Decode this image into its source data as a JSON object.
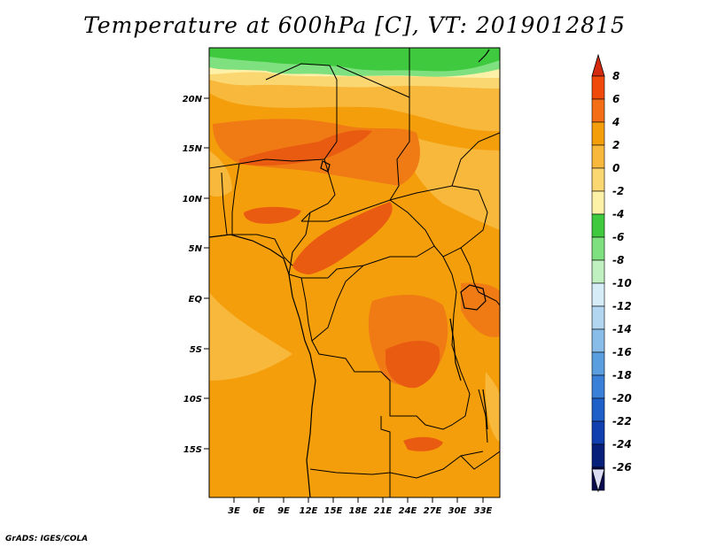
{
  "title": "Temperature at 600hPa [C], VT: 2019012815",
  "credit": "GrADS: IGES/COLA",
  "map": {
    "lat_labels": [
      "20N",
      "15N",
      "10N",
      "5N",
      "EQ",
      "5S",
      "10S",
      "15S"
    ],
    "lon_labels": [
      "3E",
      "6E",
      "9E",
      "12E",
      "15E",
      "18E",
      "21E",
      "24E",
      "27E",
      "30E",
      "33E"
    ]
  },
  "colorbar": {
    "levels": [
      "8",
      "6",
      "4",
      "2",
      "0",
      "-2",
      "-4",
      "-6",
      "-8",
      "-10",
      "-12",
      "-14",
      "-16",
      "-18",
      "-20",
      "-22",
      "-24",
      "-26"
    ],
    "colors": [
      "#d42a10",
      "#f04a0a",
      "#f36e14",
      "#f59e0b",
      "#f8b83c",
      "#fbd772",
      "#fdf1a8",
      "#3ec93e",
      "#7ee07e",
      "#c0f0c0",
      "#d6ecf7",
      "#b2d6f0",
      "#87bde8",
      "#5a9ee0",
      "#3a7fd8",
      "#1f5fc8",
      "#1040b0",
      "#07207a",
      "#0a0a50",
      "#dcdcf5"
    ]
  },
  "colors": {
    "base": "#f59e0b",
    "warm": "#f07b14",
    "hot": "#ea5b12",
    "cool": "#f8b83c",
    "cooler": "#fbd772",
    "light": "#fdf1a8",
    "green": "#3ec93e",
    "lightgreen": "#7ee07e"
  }
}
